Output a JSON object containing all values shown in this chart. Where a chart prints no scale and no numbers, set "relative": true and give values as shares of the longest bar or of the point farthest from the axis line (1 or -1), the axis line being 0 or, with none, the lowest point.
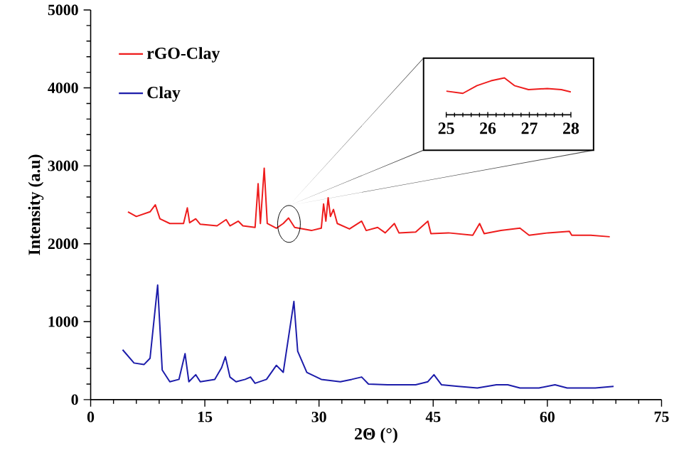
{
  "chart_data": [
    {
      "type": "line",
      "xlabel": "2Θ (°)",
      "ylabel": "Intensity (a.u)",
      "xlim": [
        0,
        75
      ],
      "xticks": [
        0,
        15,
        30,
        45,
        60,
        75
      ],
      "ylim": [
        0,
        5000
      ],
      "yticks": [
        0,
        1000,
        2000,
        3000,
        4000,
        5000
      ],
      "legend": "top left",
      "grid": false,
      "series": [
        {
          "name": "rGO-Clay",
          "color": "#ee1c1c",
          "x": [
            4.9,
            6.0,
            7.8,
            8.5,
            9.1,
            10.4,
            12.2,
            12.7,
            13.0,
            13.8,
            14.4,
            16.6,
            17.8,
            18.3,
            19.4,
            20.0,
            21.6,
            22.0,
            22.3,
            22.8,
            23.2,
            24.4,
            25.3,
            26.0,
            26.8,
            29.0,
            30.3,
            30.6,
            30.9,
            31.2,
            31.5,
            31.9,
            32.4,
            34.0,
            35.6,
            36.2,
            37.7,
            38.7,
            39.9,
            40.5,
            42.7,
            44.3,
            44.7,
            47.0,
            50.2,
            51.1,
            51.7,
            53.9,
            56.4,
            57.6,
            60.1,
            62.9,
            63.2,
            65.7,
            68.2
          ],
          "values": [
            2410,
            2350,
            2410,
            2500,
            2320,
            2260,
            2260,
            2460,
            2270,
            2320,
            2250,
            2230,
            2310,
            2230,
            2290,
            2230,
            2210,
            2770,
            2260,
            2970,
            2260,
            2200,
            2260,
            2330,
            2210,
            2170,
            2200,
            2510,
            2290,
            2590,
            2350,
            2440,
            2260,
            2190,
            2290,
            2170,
            2210,
            2140,
            2260,
            2140,
            2150,
            2290,
            2130,
            2140,
            2110,
            2260,
            2130,
            2170,
            2200,
            2110,
            2140,
            2160,
            2110,
            2110,
            2090
          ]
        },
        {
          "name": "Clay",
          "color": "#1c1caa",
          "x": [
            4.2,
            5.7,
            7.0,
            7.8,
            8.8,
            9.4,
            10.4,
            11.6,
            12.4,
            12.9,
            13.8,
            14.4,
            16.3,
            17.2,
            17.7,
            18.3,
            19.1,
            20.3,
            21.0,
            21.6,
            23.1,
            24.4,
            25.3,
            26.7,
            27.2,
            28.4,
            30.3,
            32.8,
            34.3,
            35.6,
            36.5,
            39.0,
            42.7,
            44.3,
            45.1,
            46.1,
            48.3,
            50.8,
            53.3,
            54.8,
            56.4,
            58.9,
            61.0,
            62.6,
            66.3,
            68.7
          ],
          "values": [
            640,
            470,
            450,
            530,
            1470,
            380,
            230,
            260,
            590,
            230,
            320,
            230,
            260,
            410,
            550,
            290,
            230,
            260,
            290,
            210,
            260,
            440,
            350,
            1260,
            620,
            350,
            260,
            230,
            260,
            290,
            200,
            190,
            190,
            230,
            320,
            190,
            170,
            150,
            190,
            190,
            150,
            150,
            190,
            150,
            150,
            170
          ]
        }
      ]
    },
    {
      "type": "line",
      "relative": true,
      "xlim": [
        25,
        28
      ],
      "xticks": [
        25,
        26,
        27,
        28
      ],
      "series": [
        {
          "color": "#ee1c1c",
          "x": [
            25.0,
            25.4,
            25.74,
            26.08,
            26.4,
            26.64,
            26.98,
            27.43,
            27.77,
            28.0
          ],
          "values": [
            0.64,
            0.58,
            0.79,
            0.92,
            1,
            0.79,
            0.68,
            0.71,
            0.68,
            0.62
          ]
        }
      ]
    }
  ]
}
